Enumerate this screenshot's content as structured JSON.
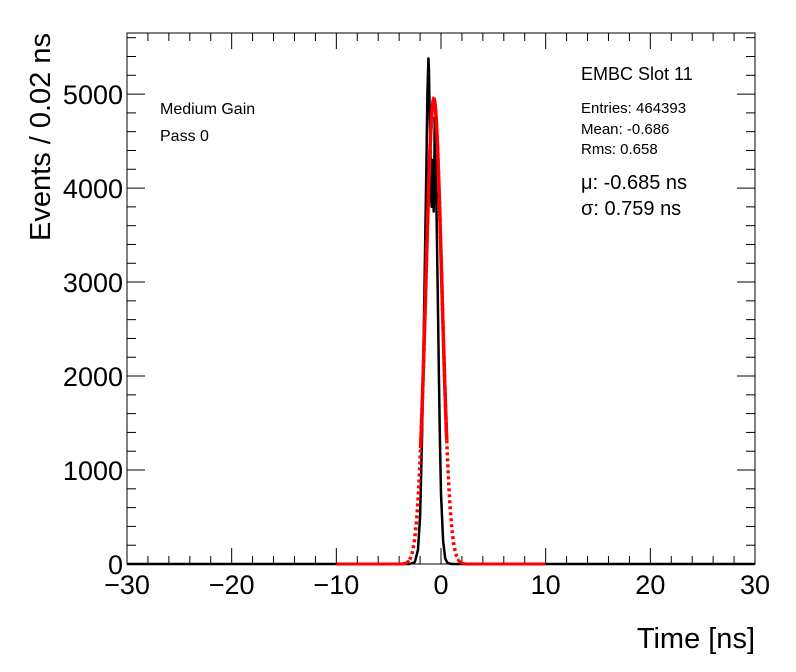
{
  "chart_data": {
    "type": "line",
    "title": "",
    "xlabel": "Time [ns]",
    "ylabel": "Events / 0.02 ns",
    "xlim": [
      -30,
      30
    ],
    "ylim": [
      0,
      5650
    ],
    "x_ticks": [
      -30,
      -20,
      -10,
      0,
      10,
      20,
      30
    ],
    "x_tick_labels": [
      "−30",
      "−20",
      "−10",
      "0",
      "10",
      "20",
      "30"
    ],
    "y_ticks": [
      0,
      1000,
      2000,
      3000,
      4000,
      5000
    ],
    "y_tick_labels": [
      "0",
      "1000",
      "2000",
      "3000",
      "4000",
      "5000"
    ],
    "grid": false,
    "series": [
      {
        "kind": "histogram",
        "color": "#000000",
        "x": [
          -3.0,
          -2.5,
          -2.2,
          -2.0,
          -1.8,
          -1.6,
          -1.4,
          -1.3,
          -1.2,
          -1.15,
          -1.1,
          -1.05,
          -1.0,
          -0.95,
          -0.9,
          -0.85,
          -0.8,
          -0.75,
          -0.7,
          -0.65,
          -0.6,
          -0.55,
          -0.5,
          -0.45,
          -0.4,
          -0.3,
          -0.2,
          -0.1,
          0.0,
          0.2,
          0.4,
          0.6,
          0.8,
          1.0,
          1.5
        ],
        "values": [
          0,
          20,
          150,
          500,
          1400,
          2800,
          4200,
          5000,
          5380,
          5250,
          4900,
          4600,
          4400,
          3950,
          3800,
          4150,
          4300,
          4200,
          3750,
          4000,
          4750,
          4600,
          4100,
          3900,
          3550,
          2800,
          2000,
          1300,
          750,
          250,
          60,
          15,
          5,
          0,
          0
        ]
      },
      {
        "kind": "fit",
        "color": "#ff0000",
        "function": "gaussian",
        "x_range": [
          -10,
          10
        ],
        "mu": -0.685,
        "sigma": 0.759,
        "amplitude": 4950
      }
    ]
  },
  "stats": {
    "title": "EMBC Slot 11",
    "entries": "Entries: 464393",
    "mean": "Mean: -0.686",
    "rms": "Rms: 0.658",
    "mu": "μ: -0.685 ns",
    "sigma": "σ: 0.759 ns"
  },
  "labels": {
    "gain": "Medium Gain",
    "pass": "Pass 0"
  }
}
